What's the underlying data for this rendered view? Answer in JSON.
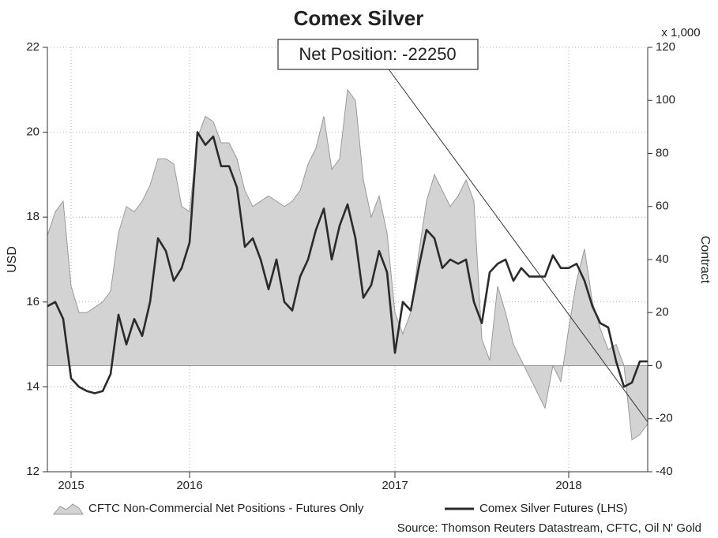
{
  "chart_data": {
    "type": "line-area",
    "title": "Comex Silver",
    "annotation": "Net Position: -22250",
    "source": "Source: Thomson Reuters Datastream, CFTC, Oil N' Gold",
    "ylabel": "USD",
    "y2label": "Contract",
    "y2_scale_label": "x 1,000",
    "categories": [
      null,
      null,
      null,
      "2015",
      null,
      null,
      null,
      null,
      null,
      null,
      null,
      null,
      null,
      null,
      null,
      null,
      null,
      null,
      "2016",
      null,
      null,
      null,
      null,
      null,
      null,
      null,
      null,
      null,
      null,
      null,
      null,
      null,
      null,
      null,
      null,
      null,
      null,
      null,
      null,
      null,
      null,
      null,
      null,
      null,
      "2017",
      null,
      null,
      null,
      null,
      null,
      null,
      null,
      null,
      null,
      null,
      null,
      null,
      null,
      null,
      null,
      null,
      null,
      null,
      null,
      null,
      null,
      "2018",
      null,
      null,
      null,
      null,
      null,
      null,
      null,
      null,
      null,
      null
    ],
    "series": [
      {
        "name": "CFTC Non-Commercial Net Positions - Futures Only",
        "type": "area",
        "axis": "y2",
        "color": "#d3d3d3",
        "edge_color": "#9a9a9a",
        "values": [
          49,
          58,
          62,
          30,
          20,
          20,
          22,
          24,
          28,
          50,
          60,
          58,
          62,
          68,
          78,
          78,
          76,
          60,
          58,
          86,
          94,
          92,
          84,
          84,
          78,
          66,
          60,
          62,
          64,
          62,
          60,
          62,
          66,
          76,
          82,
          94,
          74,
          78,
          104,
          100,
          70,
          56,
          64,
          50,
          20,
          12,
          20,
          42,
          62,
          72,
          66,
          60,
          64,
          70,
          62,
          10,
          2,
          30,
          20,
          8,
          2,
          -4,
          -10,
          -16,
          0,
          -6,
          14,
          32,
          44,
          24,
          14,
          6,
          8,
          0,
          -28,
          -26,
          -22
        ]
      },
      {
        "name": "Comex Silver Futures (LHS)",
        "type": "line",
        "axis": "y",
        "color": "#2b2b2b",
        "values": [
          15.9,
          16.0,
          15.6,
          14.2,
          14.0,
          13.9,
          13.85,
          13.9,
          14.3,
          15.7,
          15.0,
          15.6,
          15.2,
          16.0,
          17.5,
          17.2,
          16.5,
          16.8,
          17.4,
          20.0,
          19.7,
          19.9,
          19.2,
          19.2,
          18.7,
          17.3,
          17.5,
          17.0,
          16.3,
          17.0,
          16.0,
          15.8,
          16.6,
          17.0,
          17.7,
          18.2,
          17.0,
          17.8,
          18.3,
          17.5,
          16.1,
          16.4,
          17.2,
          16.7,
          14.8,
          16.0,
          15.8,
          16.8,
          17.7,
          17.5,
          16.8,
          17.0,
          16.9,
          17.0,
          16.0,
          15.5,
          16.7,
          16.9,
          17.0,
          16.5,
          16.8,
          16.6,
          16.6,
          16.6,
          17.1,
          16.8,
          16.8,
          16.9,
          16.5,
          15.9,
          15.5,
          15.4,
          14.6,
          14.0,
          14.1,
          14.6,
          14.6
        ]
      }
    ],
    "ylim": [
      12,
      22
    ],
    "yticks": [
      12,
      14,
      16,
      18,
      20,
      22
    ],
    "y2lim": [
      -40,
      120
    ],
    "y2ticks": [
      -40,
      -20,
      0,
      20,
      40,
      60,
      80,
      100,
      120
    ],
    "grid": true
  }
}
